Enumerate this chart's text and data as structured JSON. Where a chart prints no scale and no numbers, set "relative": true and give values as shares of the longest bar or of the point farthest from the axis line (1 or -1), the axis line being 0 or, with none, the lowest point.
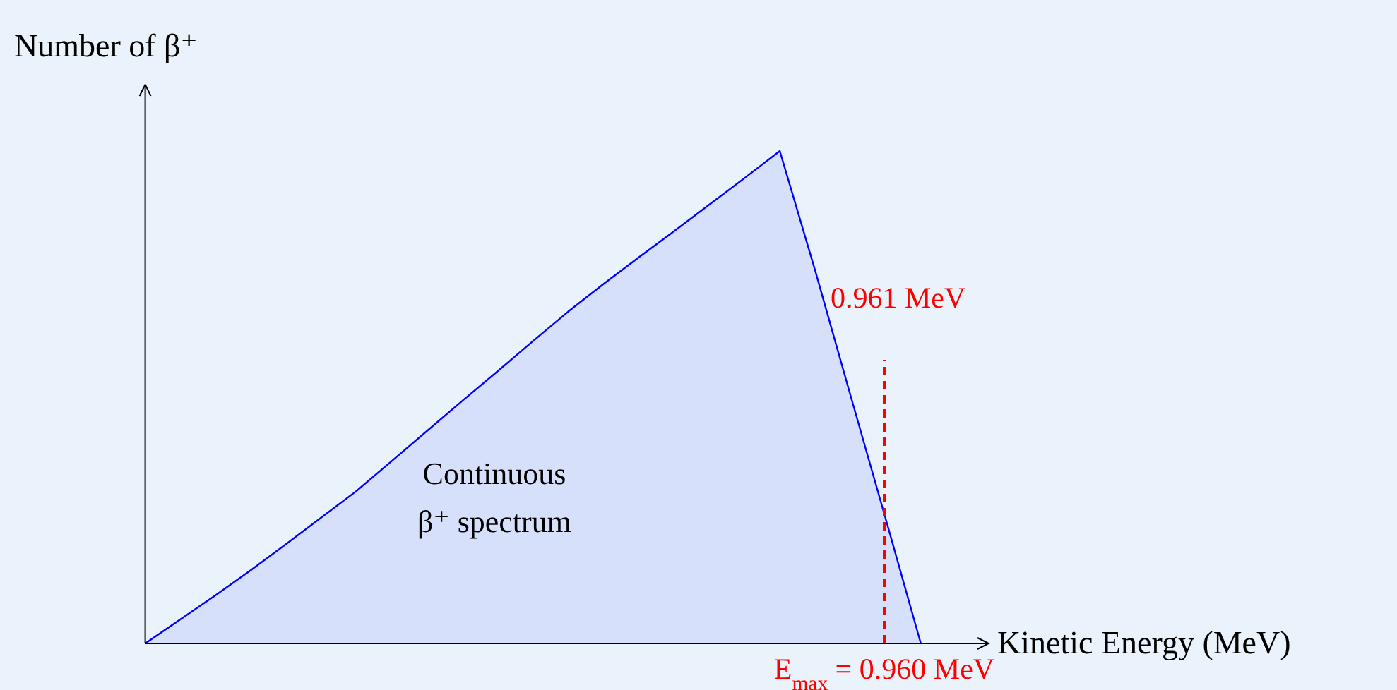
{
  "chart_data": {
    "type": "area",
    "relative": true,
    "xlabel": "Kinetic Energy (MeV)",
    "ylabel": "Number of β⁺",
    "categories": [
      null,
      null,
      null,
      null,
      null,
      null,
      null,
      null,
      null,
      null,
      null,
      null,
      null,
      null,
      null,
      null,
      null,
      null,
      null,
      null,
      null,
      null,
      null
    ],
    "series": [
      {
        "type": "area",
        "color": "#0000ff",
        "values": [
          0,
          0.049,
          0.098,
          0.149,
          0.202,
          0.256,
          0.31,
          0.371,
          0.432,
          0.493,
          0.553,
          0.614,
          0.674,
          0.73,
          0.784,
          0.837,
          0.891,
          0.945,
          1,
          0.758,
          0.505,
          0.254,
          0
        ]
      }
    ],
    "annotations": [
      "0.961 MeV",
      "Continuous\nβ⁺ spectrum",
      "E$_{max}$ = 0.960 MeV"
    ]
  }
}
